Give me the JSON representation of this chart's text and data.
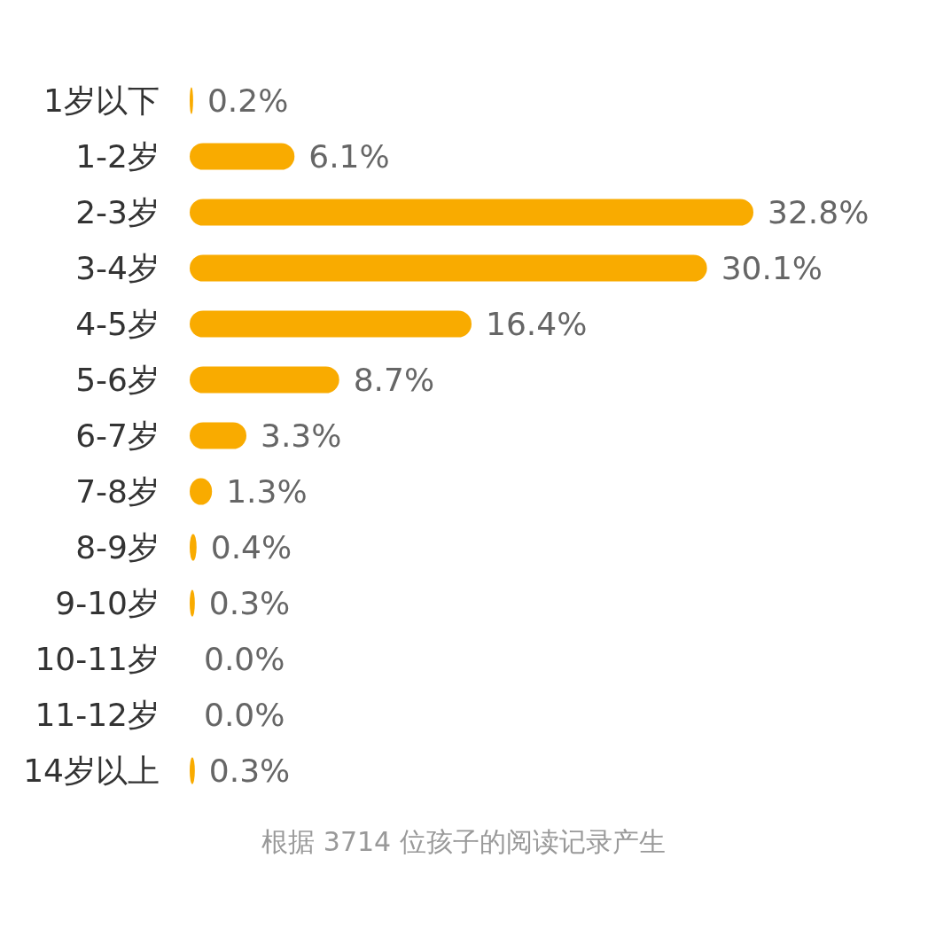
{
  "chart_data": {
    "type": "bar",
    "orientation": "horizontal",
    "categories": [
      "1岁以下",
      "1-2岁",
      "2-3岁",
      "3-4岁",
      "4-5岁",
      "5-6岁",
      "6-7岁",
      "7-8岁",
      "8-9岁",
      "9-10岁",
      "10-11岁",
      "11-12岁",
      "14岁以上"
    ],
    "values": [
      0.2,
      6.1,
      32.8,
      30.1,
      16.4,
      8.7,
      3.3,
      1.3,
      0.4,
      0.3,
      0.0,
      0.0,
      0.3
    ],
    "value_labels": [
      "0.2%",
      "6.1%",
      "32.8%",
      "30.1%",
      "16.4%",
      "8.7%",
      "3.3%",
      "1.3%",
      "0.4%",
      "0.3%",
      "0.0%",
      "0.0%",
      "0.3%"
    ],
    "color": "#f9ab00",
    "annotations": [
      "根据 3714 位孩子的阅读记录产生"
    ]
  }
}
